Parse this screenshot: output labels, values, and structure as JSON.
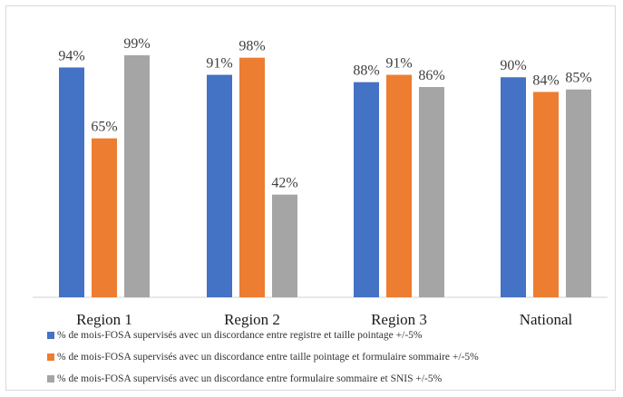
{
  "chart_data": {
    "type": "bar",
    "categories": [
      "Region 1",
      "Region 2",
      "Region 3",
      "National"
    ],
    "series": [
      {
        "name": "% de mois-FOSA supervisés avec un discordance entre registre et taille pointage +/-5%",
        "values": [
          94,
          91,
          88,
          90
        ],
        "labels": [
          "94%",
          "91%",
          "88%",
          "90%"
        ],
        "color": "#4472c4"
      },
      {
        "name": "% de mois-FOSA supervisés avec un discordance entre taille pointage et formulaire sommaire +/-5%",
        "values": [
          65,
          98,
          91,
          84
        ],
        "labels": [
          "65%",
          "98%",
          "91%",
          "84%"
        ],
        "color": "#ed7d31"
      },
      {
        "name": "% de mois-FOSA supervisés avec un discordance entre formulaire sommaire et SNIS +/-5%",
        "values": [
          99,
          42,
          86,
          85
        ],
        "labels": [
          "99%",
          "42%",
          "86%",
          "85%"
        ],
        "color": "#a5a5a5"
      }
    ],
    "ylim": [
      0,
      115
    ],
    "grid": false,
    "legend_position": "bottom"
  }
}
